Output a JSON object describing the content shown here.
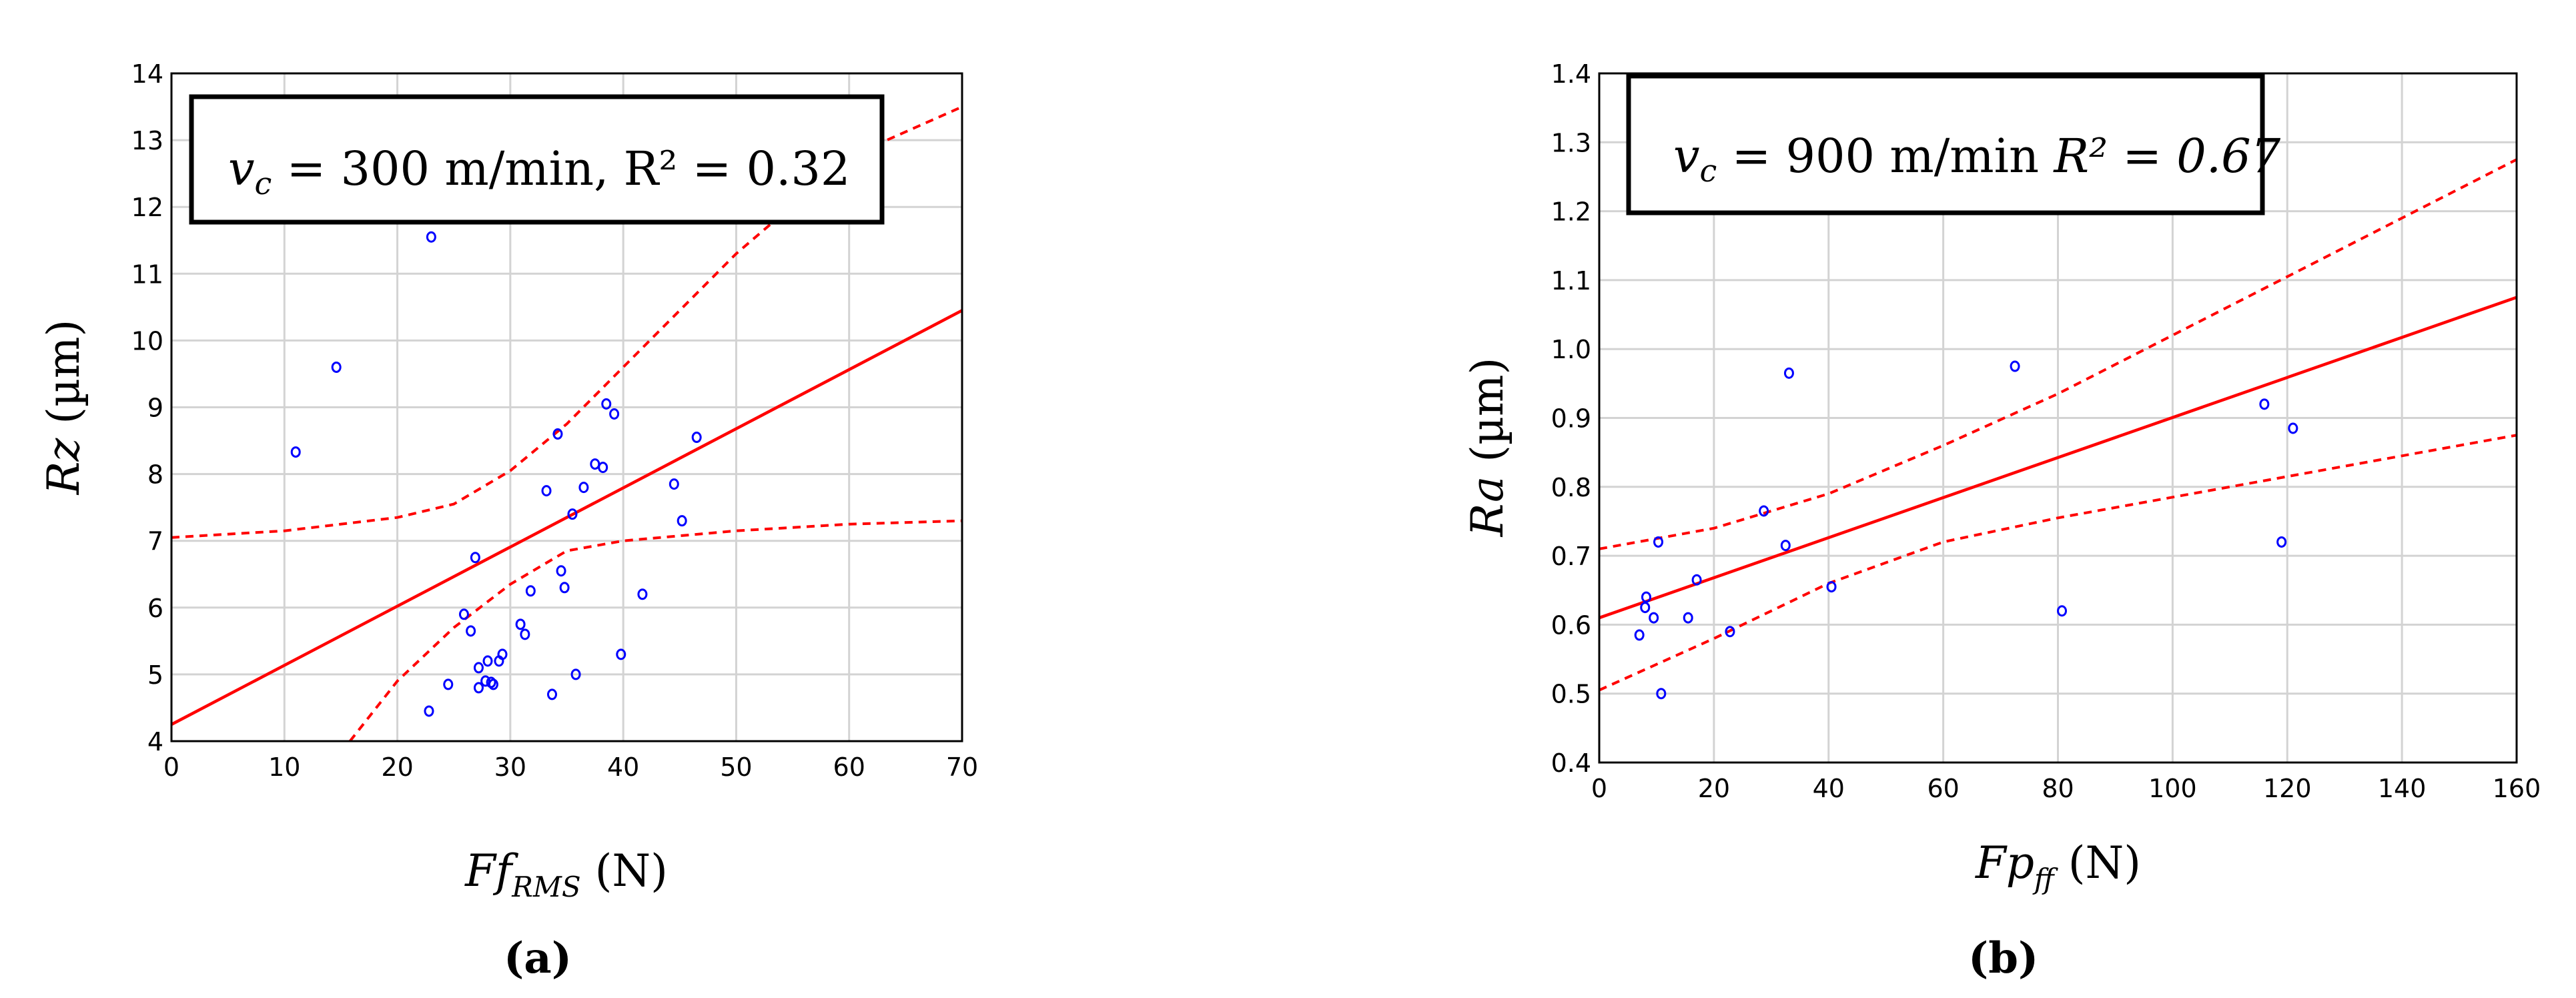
{
  "chart_data": [
    {
      "type": "scatter",
      "panel_label": "(a)",
      "annotation": {
        "symbol": "v",
        "subscript": "c",
        "text": " = 300 m/min, R² = 0.32"
      },
      "xlabel": {
        "main": "Ff",
        "subscript": "RMS",
        "unit": " (N)"
      },
      "ylabel": {
        "main": "Rz",
        "unit": " (µm)"
      },
      "xlim": [
        0,
        70
      ],
      "ylim": [
        4,
        14
      ],
      "xticks": [
        0,
        10,
        20,
        30,
        40,
        50,
        60,
        70
      ],
      "yticks": [
        4,
        5,
        6,
        7,
        8,
        9,
        10,
        11,
        12,
        13,
        14
      ],
      "grid": true,
      "colors": {
        "points": "#0000ff",
        "fit": "#ff0000",
        "band": "#ff0000",
        "grid": "#d3d3d3"
      },
      "points": [
        [
          11,
          8.33
        ],
        [
          14.6,
          9.6
        ],
        [
          23,
          11.55
        ],
        [
          22.8,
          4.45
        ],
        [
          24.5,
          4.85
        ],
        [
          25.9,
          5.9
        ],
        [
          26.5,
          5.65
        ],
        [
          26.9,
          6.75
        ],
        [
          27.2,
          5.1
        ],
        [
          27.2,
          4.8
        ],
        [
          27.8,
          4.9
        ],
        [
          28,
          5.2
        ],
        [
          28.3,
          4.88
        ],
        [
          28.5,
          4.85
        ],
        [
          29,
          5.2
        ],
        [
          29.3,
          5.3
        ],
        [
          30.9,
          5.75
        ],
        [
          31.3,
          5.6
        ],
        [
          31.8,
          6.25
        ],
        [
          33.2,
          7.75
        ],
        [
          33.7,
          4.7
        ],
        [
          34.2,
          8.6
        ],
        [
          34.5,
          6.55
        ],
        [
          34.8,
          6.3
        ],
        [
          35.5,
          7.4
        ],
        [
          35.8,
          5.0
        ],
        [
          36.5,
          7.8
        ],
        [
          37.5,
          8.15
        ],
        [
          38.2,
          8.1
        ],
        [
          38.5,
          9.05
        ],
        [
          39.2,
          8.9
        ],
        [
          39.8,
          5.3
        ],
        [
          41.7,
          6.2
        ],
        [
          44.5,
          7.85
        ],
        [
          45.2,
          7.3
        ],
        [
          46.5,
          8.55
        ]
      ],
      "fit": [
        [
          0,
          4.25
        ],
        [
          70,
          10.45
        ]
      ],
      "band_upper": [
        [
          0,
          7.05
        ],
        [
          10,
          7.15
        ],
        [
          20,
          7.35
        ],
        [
          25,
          7.55
        ],
        [
          30,
          8.05
        ],
        [
          35,
          8.75
        ],
        [
          40,
          9.6
        ],
        [
          50,
          11.3
        ],
        [
          60,
          12.75
        ],
        [
          70,
          13.5
        ]
      ],
      "band_lower": [
        [
          15.8,
          4.0
        ],
        [
          20,
          4.9
        ],
        [
          25,
          5.7
        ],
        [
          30,
          6.35
        ],
        [
          35,
          6.85
        ],
        [
          40,
          7.0
        ],
        [
          50,
          7.15
        ],
        [
          60,
          7.25
        ],
        [
          70,
          7.3
        ]
      ]
    },
    {
      "type": "scatter",
      "panel_label": "(b)",
      "annotation": {
        "symbol": "v",
        "subscript": "c",
        "text": " = 900 m/min ",
        "r2": "R² = 0.67"
      },
      "xlabel": {
        "main": "Fp",
        "subscript": "ff",
        "unit": " (N)"
      },
      "ylabel": {
        "main": "Ra",
        "unit": " (µm)"
      },
      "xlim": [
        0,
        160
      ],
      "ylim": [
        0.4,
        1.4
      ],
      "xticks": [
        0,
        20,
        40,
        60,
        80,
        100,
        120,
        140,
        160
      ],
      "yticks": [
        "0.4",
        "0.5",
        "0.6",
        "0.7",
        "0.8",
        "0.9",
        "1.0",
        "1.1",
        "1.2",
        "1.3",
        "1.4"
      ],
      "grid": true,
      "colors": {
        "points": "#0000ff",
        "fit": "#ff0000",
        "band": "#ff0000",
        "grid": "#d3d3d3"
      },
      "points": [
        [
          7,
          0.585
        ],
        [
          8,
          0.625
        ],
        [
          8.2,
          0.64
        ],
        [
          9.5,
          0.61
        ],
        [
          10.3,
          0.72
        ],
        [
          10.8,
          0.5
        ],
        [
          15.5,
          0.61
        ],
        [
          17,
          0.665
        ],
        [
          22.8,
          0.59
        ],
        [
          28.7,
          0.765
        ],
        [
          32.5,
          0.715
        ],
        [
          33.1,
          0.965
        ],
        [
          40.5,
          0.655
        ],
        [
          72.5,
          0.975
        ],
        [
          80.7,
          0.62
        ],
        [
          116,
          0.92
        ],
        [
          119,
          0.72
        ],
        [
          121,
          0.885
        ]
      ],
      "fit": [
        [
          0,
          0.61
        ],
        [
          160,
          1.075
        ]
      ],
      "band_upper": [
        [
          0,
          0.71
        ],
        [
          20,
          0.74
        ],
        [
          40,
          0.79
        ],
        [
          60,
          0.86
        ],
        [
          80,
          0.935
        ],
        [
          100,
          1.02
        ],
        [
          120,
          1.105
        ],
        [
          140,
          1.19
        ],
        [
          160,
          1.275
        ]
      ],
      "band_lower": [
        [
          0,
          0.505
        ],
        [
          20,
          0.58
        ],
        [
          40,
          0.66
        ],
        [
          60,
          0.72
        ],
        [
          80,
          0.755
        ],
        [
          100,
          0.785
        ],
        [
          120,
          0.815
        ],
        [
          140,
          0.845
        ],
        [
          160,
          0.875
        ]
      ]
    }
  ]
}
